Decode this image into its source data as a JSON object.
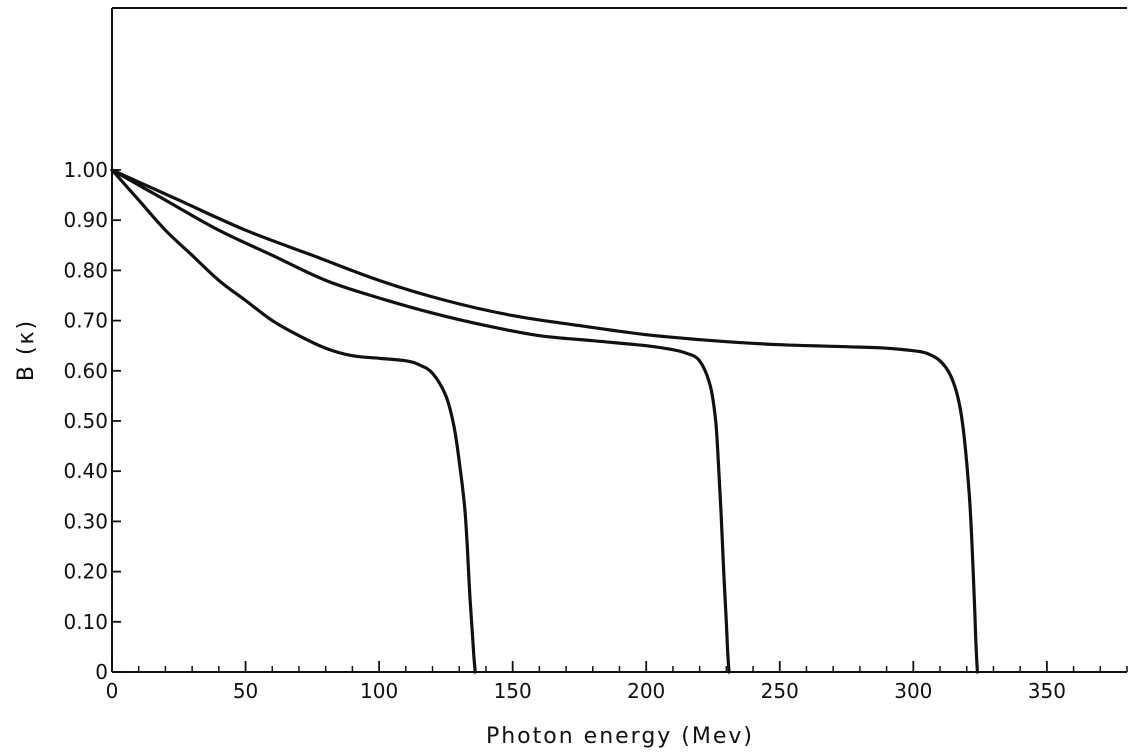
{
  "chart_data": {
    "type": "line",
    "title": "",
    "xlabel": "Photon   energy  (Mev)",
    "ylabel": "B  (κ)",
    "xlim": [
      0,
      380
    ],
    "ylim": [
      0,
      1.0
    ],
    "x_ticks": [
      0,
      50,
      100,
      150,
      200,
      250,
      300,
      350
    ],
    "x_tick_labels": [
      "0",
      "50",
      "100",
      "150",
      "200",
      "250",
      "300",
      "350"
    ],
    "x_minor_step": 10,
    "y_ticks": [
      0,
      0.1,
      0.2,
      0.3,
      0.4,
      0.5,
      0.6,
      0.7,
      0.8,
      0.9,
      1.0
    ],
    "y_tick_labels": [
      "0",
      "0.10",
      "0.20",
      "0.30",
      "0.40",
      "0.50",
      "0.60",
      "0.70",
      "0.80",
      "0.90",
      "1.00"
    ],
    "grid": false,
    "legend": "none",
    "line_color": "#111111",
    "series": [
      {
        "x": [
          0,
          10,
          20,
          30,
          40,
          50,
          60,
          70,
          80,
          90,
          100,
          110,
          115,
          120,
          125,
          128,
          130,
          132,
          133,
          134,
          135,
          135.5,
          136
        ],
        "y": [
          1.0,
          0.94,
          0.88,
          0.83,
          0.78,
          0.74,
          0.7,
          0.67,
          0.645,
          0.63,
          0.625,
          0.62,
          0.612,
          0.595,
          0.55,
          0.49,
          0.42,
          0.33,
          0.25,
          0.15,
          0.07,
          0.03,
          0
        ]
      },
      {
        "x": [
          0,
          20,
          40,
          60,
          80,
          100,
          120,
          140,
          160,
          180,
          200,
          210,
          215,
          220,
          224,
          226,
          227,
          228,
          229,
          230,
          230.5,
          231
        ],
        "y": [
          1.0,
          0.94,
          0.88,
          0.83,
          0.78,
          0.745,
          0.715,
          0.69,
          0.67,
          0.66,
          0.65,
          0.642,
          0.635,
          0.62,
          0.57,
          0.5,
          0.42,
          0.32,
          0.2,
          0.1,
          0.04,
          0
        ]
      },
      {
        "x": [
          0,
          25,
          50,
          75,
          100,
          125,
          150,
          175,
          200,
          225,
          250,
          275,
          290,
          300,
          305,
          310,
          314,
          317,
          319,
          321,
          322,
          323,
          323.5,
          324
        ],
        "y": [
          1.0,
          0.94,
          0.88,
          0.83,
          0.78,
          0.74,
          0.71,
          0.69,
          0.672,
          0.66,
          0.652,
          0.648,
          0.645,
          0.64,
          0.635,
          0.62,
          0.59,
          0.54,
          0.47,
          0.35,
          0.25,
          0.12,
          0.05,
          0
        ]
      }
    ]
  }
}
